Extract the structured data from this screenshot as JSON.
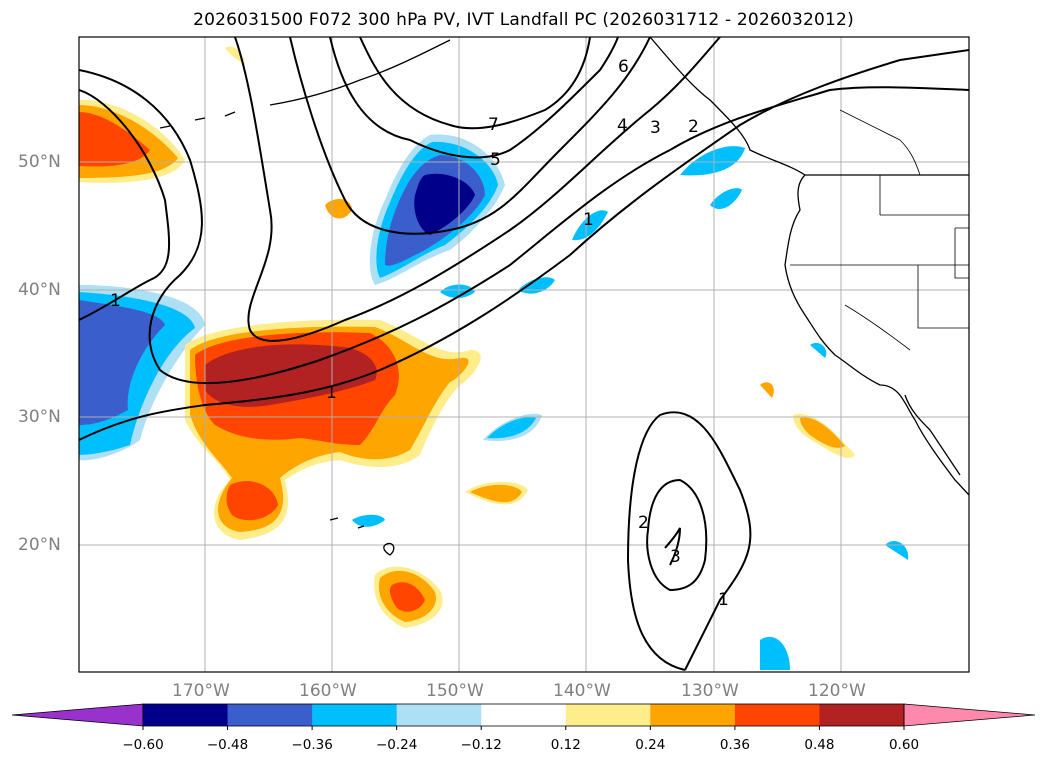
{
  "title": "2026031500 F072 300 hPa PV, IVT Landfall PC (2026031712 - 2026032012)",
  "map": {
    "lat_labels": [
      "50°N",
      "40°N",
      "30°N",
      "20°N"
    ],
    "lon_labels": [
      "170°W",
      "160°W",
      "150°W",
      "140°W",
      "130°W",
      "120°W"
    ],
    "contour_labels": [
      "1",
      "1",
      "1",
      "1",
      "2",
      "2",
      "3",
      "3",
      "4",
      "5",
      "6",
      "7"
    ]
  },
  "colorbar": {
    "ticks": [
      "−0.60",
      "−0.48",
      "−0.36",
      "−0.24",
      "−0.12",
      "0.12",
      "0.24",
      "0.36",
      "0.48",
      "0.60"
    ],
    "colors": [
      "#9932CC",
      "#00008B",
      "#3A5FCD",
      "#00BFFF",
      "#ADDFF5",
      "#FFFFFF",
      "#FFEC8B",
      "#FFA500",
      "#FF4500",
      "#B22222",
      "#FF89AC"
    ]
  }
}
